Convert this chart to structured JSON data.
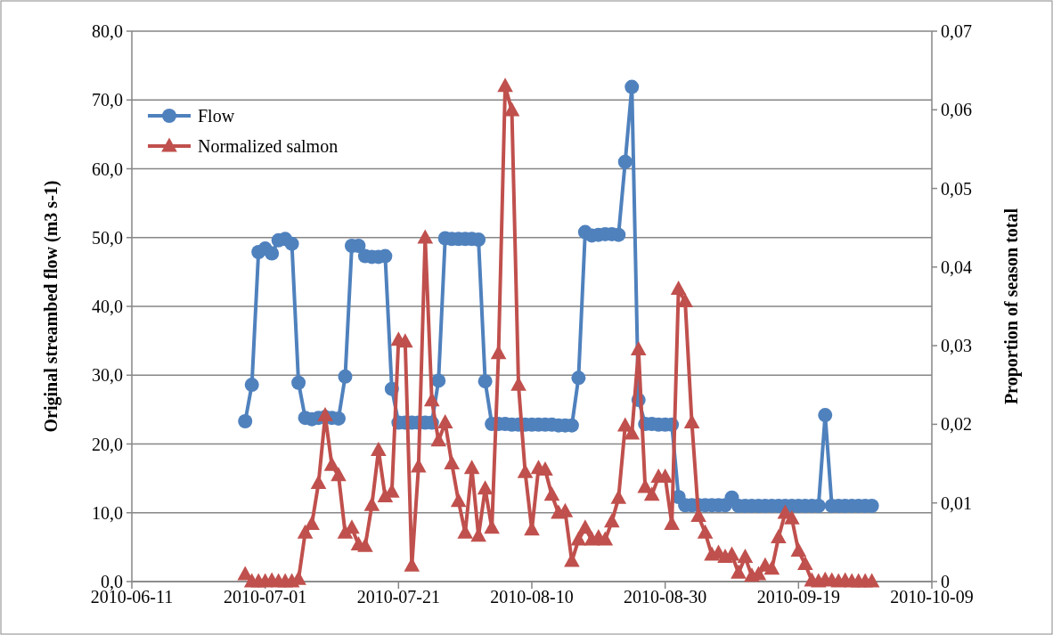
{
  "chart_data": {
    "type": "line",
    "ylabel": "Original streambed flow (m3 s-1)",
    "y2label": "Proportion of season total",
    "x": [
      "2010-06-28",
      "2010-06-29",
      "2010-06-30",
      "2010-07-01",
      "2010-07-02",
      "2010-07-03",
      "2010-07-04",
      "2010-07-05",
      "2010-07-06",
      "2010-07-07",
      "2010-07-08",
      "2010-07-09",
      "2010-07-10",
      "2010-07-11",
      "2010-07-12",
      "2010-07-13",
      "2010-07-14",
      "2010-07-15",
      "2010-07-16",
      "2010-07-17",
      "2010-07-18",
      "2010-07-19",
      "2010-07-20",
      "2010-07-21",
      "2010-07-22",
      "2010-07-23",
      "2010-07-24",
      "2010-07-25",
      "2010-07-26",
      "2010-07-27",
      "2010-07-28",
      "2010-07-29",
      "2010-07-30",
      "2010-07-31",
      "2010-08-01",
      "2010-08-02",
      "2010-08-03",
      "2010-08-04",
      "2010-08-05",
      "2010-08-06",
      "2010-08-07",
      "2010-08-08",
      "2010-08-09",
      "2010-08-10",
      "2010-08-11",
      "2010-08-12",
      "2010-08-13",
      "2010-08-14",
      "2010-08-15",
      "2010-08-16",
      "2010-08-17",
      "2010-08-18",
      "2010-08-19",
      "2010-08-20",
      "2010-08-21",
      "2010-08-22",
      "2010-08-23",
      "2010-08-24",
      "2010-08-25",
      "2010-08-26",
      "2010-08-27",
      "2010-08-28",
      "2010-08-29",
      "2010-08-30",
      "2010-08-31",
      "2010-09-01",
      "2010-09-02",
      "2010-09-03",
      "2010-09-04",
      "2010-09-05",
      "2010-09-06",
      "2010-09-07",
      "2010-09-08",
      "2010-09-09",
      "2010-09-10",
      "2010-09-11",
      "2010-09-12",
      "2010-09-13",
      "2010-09-14",
      "2010-09-15",
      "2010-09-16",
      "2010-09-17",
      "2010-09-18",
      "2010-09-19",
      "2010-09-20",
      "2010-09-21",
      "2010-09-22",
      "2010-09-23",
      "2010-09-24",
      "2010-09-25",
      "2010-09-26",
      "2010-09-27",
      "2010-09-28",
      "2010-09-29",
      "2010-09-30"
    ],
    "series": [
      {
        "name": "Flow",
        "color": "#4f81bd",
        "marker": "circle",
        "values": [
          23.3,
          28.6,
          47.9,
          48.4,
          47.7,
          49.6,
          49.8,
          49.1,
          28.9,
          23.8,
          23.6,
          23.8,
          23.9,
          23.8,
          23.7,
          29.8,
          48.8,
          48.8,
          47.3,
          47.2,
          47.2,
          47.3,
          28.0,
          23.1,
          23.1,
          23.1,
          23.1,
          23.1,
          23.1,
          29.2,
          49.9,
          49.8,
          49.8,
          49.8,
          49.8,
          49.7,
          29.1,
          22.9,
          22.9,
          22.9,
          22.8,
          22.8,
          22.8,
          22.8,
          22.8,
          22.8,
          22.8,
          22.7,
          22.7,
          22.7,
          29.6,
          50.8,
          50.3,
          50.4,
          50.5,
          50.5,
          50.4,
          61.0,
          71.9,
          26.4,
          22.9,
          22.9,
          22.8,
          22.8,
          22.8,
          12.3,
          11.1,
          11.1,
          11.1,
          11.1,
          11.1,
          11.1,
          11.1,
          12.2,
          11.0,
          11.0,
          11.0,
          11.0,
          11.0,
          11.0,
          11.0,
          11.0,
          11.0,
          11.0,
          11.0,
          11.0,
          11.0,
          24.2,
          11.0,
          11.0,
          11.0,
          11.0,
          11.0,
          11.0,
          11.0
        ]
      },
      {
        "name": "Normalized salmon",
        "color": "#c0504d",
        "marker": "triangle",
        "axis": "y2",
        "values": [
          0.0009,
          0,
          0,
          0,
          0.0001,
          0,
          0,
          0,
          0.0003,
          0.0062,
          0.0073,
          0.0125,
          0.0211,
          0.0148,
          0.0135,
          0.0062,
          0.0068,
          0.0047,
          0.0045,
          0.0097,
          0.0167,
          0.0108,
          0.0114,
          0.0307,
          0.0305,
          0.002,
          0.0146,
          0.0437,
          0.023,
          0.0179,
          0.0202,
          0.015,
          0.0102,
          0.0062,
          0.0144,
          0.0058,
          0.0118,
          0.0068,
          0.029,
          0.063,
          0.0599,
          0.025,
          0.0139,
          0.0066,
          0.0144,
          0.0142,
          0.011,
          0.0087,
          0.0089,
          0.0026,
          0.0053,
          0.0068,
          0.0053,
          0.0056,
          0.0053,
          0.0076,
          0.0106,
          0.0198,
          0.0188,
          0.0295,
          0.012,
          0.011,
          0.0133,
          0.0133,
          0.0073,
          0.0372,
          0.0356,
          0.0202,
          0.0083,
          0.0062,
          0.0034,
          0.0036,
          0.0031,
          0.0034,
          0.0011,
          0.0031,
          0.0007,
          0.0009,
          0.002,
          0.0016,
          0.0056,
          0.0087,
          0.008,
          0.0039,
          0.0022,
          0.0001,
          0,
          0.0002,
          0.0001,
          0,
          0.0001,
          0,
          0,
          0,
          0
        ]
      }
    ],
    "xlim": [
      "2010-06-11",
      "2010-10-09"
    ],
    "xticks": [
      "2010-06-11",
      "2010-07-01",
      "2010-07-21",
      "2010-08-10",
      "2010-08-30",
      "2010-09-19",
      "2010-10-09"
    ],
    "ylim": [
      0,
      80
    ],
    "yticks": [
      {
        "value": 0,
        "label": "0,0"
      },
      {
        "value": 10,
        "label": "10,0"
      },
      {
        "value": 20,
        "label": "20,0"
      },
      {
        "value": 30,
        "label": "30,0"
      },
      {
        "value": 40,
        "label": "40,0"
      },
      {
        "value": 50,
        "label": "50,0"
      },
      {
        "value": 60,
        "label": "60,0"
      },
      {
        "value": 70,
        "label": "70,0"
      },
      {
        "value": 80,
        "label": "80,0"
      }
    ],
    "y2lim": [
      0,
      0.07
    ],
    "y2ticks": [
      0,
      {
        "value": 0.01,
        "label": "0,01"
      },
      {
        "value": 0.02,
        "label": "0,02"
      },
      {
        "value": 0.03,
        "label": "0,03"
      },
      {
        "value": 0.04,
        "label": "0,04"
      },
      {
        "value": 0.05,
        "label": "0,05"
      },
      {
        "value": 0.06,
        "label": "0,06"
      },
      {
        "value": 0.07,
        "label": "0,07"
      }
    ],
    "grid": "y",
    "legend": "top left"
  }
}
